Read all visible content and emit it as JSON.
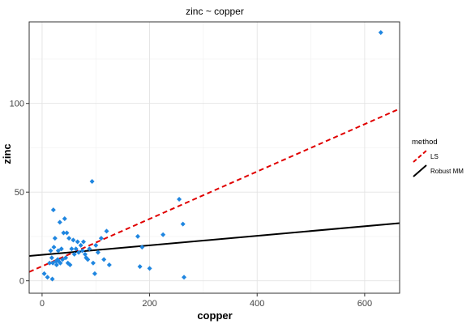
{
  "chart_data": {
    "type": "scatter",
    "title": "zinc ~ copper",
    "xlabel": "copper",
    "ylabel": "zinc",
    "xlim": [
      -24,
      665
    ],
    "ylim": [
      -7,
      146
    ],
    "xticks": [
      0,
      200,
      400,
      600
    ],
    "yticks": [
      0,
      50,
      100
    ],
    "grid": true,
    "points_color": "#1f86e0",
    "points": [
      [
        4,
        4
      ],
      [
        10,
        2
      ],
      [
        14,
        10
      ],
      [
        16,
        17
      ],
      [
        18,
        13
      ],
      [
        19,
        1
      ],
      [
        20,
        10
      ],
      [
        21,
        40
      ],
      [
        22,
        19
      ],
      [
        24,
        24
      ],
      [
        26,
        11
      ],
      [
        27,
        9
      ],
      [
        29,
        12
      ],
      [
        30,
        17
      ],
      [
        31,
        11
      ],
      [
        33,
        33
      ],
      [
        34,
        10
      ],
      [
        36,
        18
      ],
      [
        38,
        12
      ],
      [
        40,
        27
      ],
      [
        42,
        35
      ],
      [
        44,
        13
      ],
      [
        46,
        27
      ],
      [
        48,
        10
      ],
      [
        50,
        24
      ],
      [
        52,
        9
      ],
      [
        55,
        18
      ],
      [
        58,
        23
      ],
      [
        60,
        15
      ],
      [
        63,
        18
      ],
      [
        66,
        22
      ],
      [
        68,
        16
      ],
      [
        72,
        20
      ],
      [
        75,
        17
      ],
      [
        77,
        22
      ],
      [
        80,
        15
      ],
      [
        82,
        13
      ],
      [
        85,
        12
      ],
      [
        88,
        18
      ],
      [
        93,
        56
      ],
      [
        95,
        10
      ],
      [
        98,
        4
      ],
      [
        100,
        20
      ],
      [
        104,
        16
      ],
      [
        110,
        24
      ],
      [
        115,
        12
      ],
      [
        120,
        28
      ],
      [
        125,
        9
      ],
      [
        178,
        25
      ],
      [
        182,
        8
      ],
      [
        186,
        19
      ],
      [
        200,
        7
      ],
      [
        225,
        26
      ],
      [
        255,
        46
      ],
      [
        262,
        32
      ],
      [
        264,
        2
      ],
      [
        630,
        140
      ]
    ],
    "lines": [
      {
        "name": "LS",
        "color": "#e00000",
        "dash": true,
        "x": [
          -24,
          665
        ],
        "y": [
          5,
          97
        ]
      },
      {
        "name": "Robust MM",
        "color": "#000000",
        "dash": false,
        "x": [
          -24,
          665
        ],
        "y": [
          14,
          32.5
        ]
      }
    ],
    "legend": {
      "title": "method",
      "placement": "right",
      "entries": [
        {
          "label": "LS",
          "color": "#e00000",
          "dash": true
        },
        {
          "label": "Robust MM",
          "color": "#000000",
          "dash": false
        }
      ]
    }
  }
}
